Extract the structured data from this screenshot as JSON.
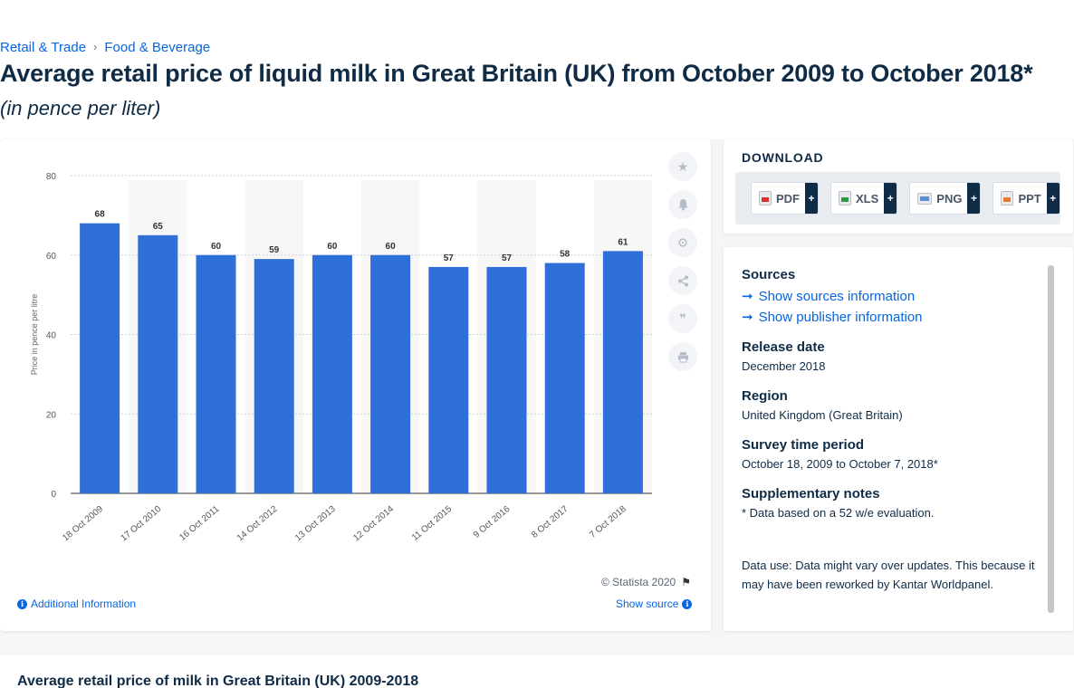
{
  "breadcrumb": {
    "items": [
      "Retail & Trade",
      "Food & Beverage"
    ],
    "separator": "›"
  },
  "title": "Average retail price of liquid milk in Great Britain (UK) from October 2009 to October 2018*",
  "subtitle": "(in pence per liter)",
  "chart_data": {
    "type": "bar",
    "categories": [
      "18 Oct 2009",
      "17 Oct 2010",
      "16 Oct 2011",
      "14 Oct 2012",
      "13 Oct 2013",
      "12 Oct 2014",
      "11 Oct 2015",
      "9 Oct 2016",
      "8 Oct 2017",
      "7 Oct 2018"
    ],
    "values": [
      68,
      65,
      60,
      59,
      60,
      60,
      57,
      57,
      58,
      61
    ],
    "value_labels": [
      "68",
      "65",
      "60",
      "59",
      "60",
      "60",
      "57",
      "57",
      "58",
      "61"
    ],
    "ylabel": "Price in pence per litre",
    "xlabel": "",
    "ylim": [
      0,
      80
    ],
    "yticks": [
      "0",
      "20",
      "40",
      "60",
      "80"
    ],
    "grid": true,
    "bar_color": "#2f6fd8"
  },
  "chart_footer": {
    "copyright": "© Statista 2020",
    "additional_info": "Additional Information",
    "show_source": "Show source"
  },
  "download": {
    "title": "DOWNLOAD",
    "buttons": [
      {
        "label": "PDF",
        "plus": "+"
      },
      {
        "label": "XLS",
        "plus": "+"
      },
      {
        "label": "PNG",
        "plus": "+"
      },
      {
        "label": "PPT",
        "plus": "+"
      }
    ]
  },
  "info": {
    "sources_heading": "Sources",
    "show_sources": "Show sources information",
    "show_publisher": "Show publisher information",
    "release_heading": "Release date",
    "release_value": "December 2018",
    "region_heading": "Region",
    "region_value": "United Kingdom (Great Britain)",
    "survey_heading": "Survey time period",
    "survey_value": "October 18, 2009 to October 7, 2018*",
    "supp_heading": "Supplementary notes",
    "supp_value": "* Data based on a 52 w/e evaluation.",
    "data_use": "Data use: Data might vary over updates. This because it may have been reworked by Kantar Worldpanel."
  },
  "bottom": {
    "title": "Average retail price of milk in Great Britain (UK) 2009-2018"
  }
}
